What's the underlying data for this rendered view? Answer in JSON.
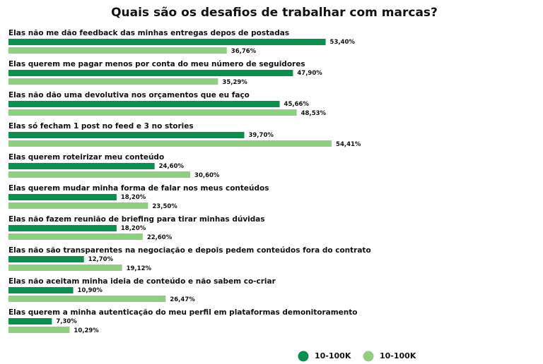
{
  "chart_data": {
    "type": "bar",
    "orientation": "horizontal",
    "title": "Quais são os desafios de trabalhar com marcas?",
    "categories": [
      "Elas não me dão feedback das minhas entregas depos de postadas",
      "Elas querem me pagar menos por conta do meu número de seguidores",
      "Elas não dão uma devolutiva nos orçamentos que eu faço",
      "Elas só fecham 1 post no feed e 3 no stories",
      "Elas querem roteirizar meu conteúdo",
      "Elas querem mudar minha forma de falar nos meus conteúdos",
      "Elas não fazem reunião de briefing para tirar minhas dúvidas",
      "Elas não são transparentes na negociação e depois pedem conteúdos fora do contrato",
      "Elas não aceitam minha ideia de conteúdo e não sabem co-criar",
      "Elas querem a minha autenticação do meu perfil em plataformas demonitoramento"
    ],
    "series": [
      {
        "name": "10-100K",
        "color": "#0a8f4f",
        "values": [
          53.4,
          47.9,
          45.66,
          39.7,
          24.6,
          18.2,
          18.2,
          12.7,
          10.9,
          7.3
        ],
        "value_labels": [
          "53,40%",
          "47,90%",
          "45,66%",
          "39,70%",
          "24,60%",
          "18,20%",
          "18,20%",
          "12,70%",
          "10,90%",
          "7,30%"
        ]
      },
      {
        "name": "10-100K",
        "color": "#8fcf7f",
        "values": [
          36.76,
          35.29,
          48.53,
          54.41,
          30.6,
          23.5,
          22.6,
          19.12,
          26.47,
          10.29
        ],
        "value_labels": [
          "36,76%",
          "35,29%",
          "48,53%",
          "54,41%",
          "30,60%",
          "23,50%",
          "22,60%",
          "19,12%",
          "26,47%",
          "10,29%"
        ]
      }
    ]
  }
}
